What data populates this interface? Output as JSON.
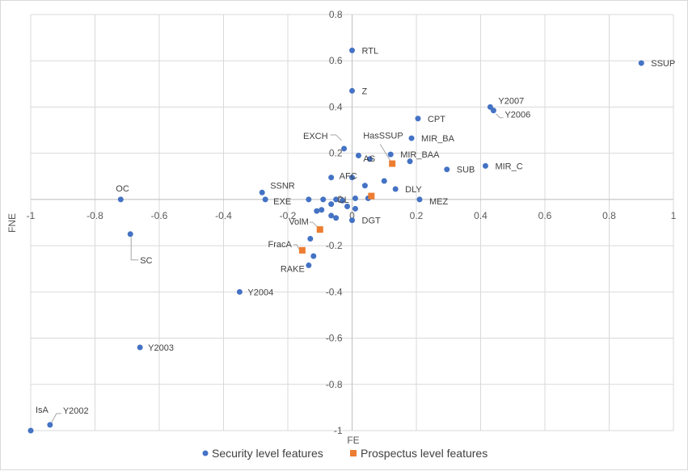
{
  "chart_data": {
    "type": "scatter",
    "title": "",
    "xlabel": "FE",
    "ylabel": "FNE",
    "xlim": [
      -1,
      1
    ],
    "ylim": [
      -1,
      0.8
    ],
    "xticks": [
      -1,
      -0.8,
      -0.6,
      -0.4,
      -0.2,
      0,
      0.2,
      0.4,
      0.6,
      0.8,
      1
    ],
    "xtick_labels": [
      "-1",
      "-0.8",
      "-0.6",
      "-0.4",
      "-0.2",
      "0",
      "0.2",
      "0.4",
      "0.6",
      "0.8",
      "1"
    ],
    "yticks": [
      -1,
      -0.8,
      -0.6,
      -0.4,
      -0.2,
      0,
      0.2,
      0.4,
      0.6,
      0.8
    ],
    "ytick_labels": [
      "-1",
      "-0.8",
      "-0.6",
      "-0.4",
      "-0.2",
      "0",
      "0.2",
      "0.4",
      "0.6",
      "0.8"
    ],
    "grid": true,
    "legend_position": "bottom",
    "series": [
      {
        "name": "Security level features",
        "color": "#4472C4",
        "marker": "circle",
        "points": [
          {
            "x": 0.0,
            "y": 0.645,
            "label": "RTL"
          },
          {
            "x": 0.0,
            "y": 0.47,
            "label": "Z"
          },
          {
            "x": 0.9,
            "y": 0.59,
            "label": "SSUP"
          },
          {
            "x": 0.43,
            "y": 0.4,
            "label": "Y2007"
          },
          {
            "x": 0.44,
            "y": 0.385,
            "label": "Y2006"
          },
          {
            "x": 0.205,
            "y": 0.35,
            "label": "CPT"
          },
          {
            "x": 0.185,
            "y": 0.265,
            "label": "MIR_BA"
          },
          {
            "x": -0.025,
            "y": 0.22,
            "label": "EXCH"
          },
          {
            "x": 0.12,
            "y": 0.195,
            "label": "MIR_BAA"
          },
          {
            "x": 0.055,
            "y": 0.175,
            "label": "AS"
          },
          {
            "x": 0.18,
            "y": 0.165,
            "label": "",
            "key": "p10"
          },
          {
            "x": 0.02,
            "y": 0.19,
            "label": "",
            "key": "p11"
          },
          {
            "x": 0.295,
            "y": 0.13,
            "label": "SUB"
          },
          {
            "x": 0.415,
            "y": 0.145,
            "label": "MIR_C"
          },
          {
            "x": -0.065,
            "y": 0.095,
            "label": "AFC"
          },
          {
            "x": 0.0,
            "y": 0.095,
            "label": "",
            "key": "p15"
          },
          {
            "x": 0.1,
            "y": 0.08,
            "label": "",
            "key": "p16"
          },
          {
            "x": 0.04,
            "y": 0.06,
            "label": "",
            "key": "p17"
          },
          {
            "x": 0.135,
            "y": 0.045,
            "label": "DLY"
          },
          {
            "x": -0.72,
            "y": 0.0,
            "label": "OC"
          },
          {
            "x": -0.28,
            "y": 0.03,
            "label": "SSNR"
          },
          {
            "x": -0.27,
            "y": 0.0,
            "label": "EXE"
          },
          {
            "x": -0.135,
            "y": 0.0,
            "label": "",
            "key": "p22"
          },
          {
            "x": -0.09,
            "y": 0.0,
            "label": "",
            "key": "p23"
          },
          {
            "x": -0.05,
            "y": 0.0,
            "label": "CL"
          },
          {
            "x": -0.03,
            "y": -0.005,
            "label": "",
            "key": "p25"
          },
          {
            "x": 0.01,
            "y": 0.005,
            "label": "",
            "key": "p26"
          },
          {
            "x": 0.05,
            "y": 0.005,
            "label": "",
            "key": "p27"
          },
          {
            "x": 0.21,
            "y": 0.0,
            "label": "MEZ"
          },
          {
            "x": -0.065,
            "y": -0.02,
            "label": "",
            "key": "p29"
          },
          {
            "x": -0.015,
            "y": -0.03,
            "label": "",
            "key": "p30"
          },
          {
            "x": 0.01,
            "y": -0.04,
            "label": "",
            "key": "p31"
          },
          {
            "x": -0.095,
            "y": -0.045,
            "label": "",
            "key": "p32"
          },
          {
            "x": -0.11,
            "y": -0.05,
            "label": "",
            "key": "p33"
          },
          {
            "x": -0.065,
            "y": -0.07,
            "label": "",
            "key": "p34"
          },
          {
            "x": -0.05,
            "y": -0.08,
            "label": "",
            "key": "p35"
          },
          {
            "x": 0.0,
            "y": -0.09,
            "label": "DGT"
          },
          {
            "x": -0.69,
            "y": -0.15,
            "label": "SC"
          },
          {
            "x": -0.13,
            "y": -0.17,
            "label": "",
            "key": "p38"
          },
          {
            "x": -0.12,
            "y": -0.245,
            "label": "",
            "key": "p39"
          },
          {
            "x": -0.135,
            "y": -0.285,
            "label": "RAKE"
          },
          {
            "x": -0.35,
            "y": -0.4,
            "label": "Y2004"
          },
          {
            "x": -0.66,
            "y": -0.64,
            "label": "Y2003"
          },
          {
            "x": -0.94,
            "y": -0.975,
            "label": "Y2002"
          },
          {
            "x": -1.0,
            "y": -1.0,
            "label": "IsA"
          }
        ]
      },
      {
        "name": "Prospectus level features",
        "color": "#ED7D31",
        "marker": "square",
        "points": [
          {
            "x": 0.125,
            "y": 0.155,
            "label": "HasSSUP"
          },
          {
            "x": 0.06,
            "y": 0.015,
            "label": "",
            "key": "q1"
          },
          {
            "x": -0.1,
            "y": -0.13,
            "label": "VolM"
          },
          {
            "x": -0.155,
            "y": -0.22,
            "label": "FracA"
          }
        ]
      }
    ]
  }
}
